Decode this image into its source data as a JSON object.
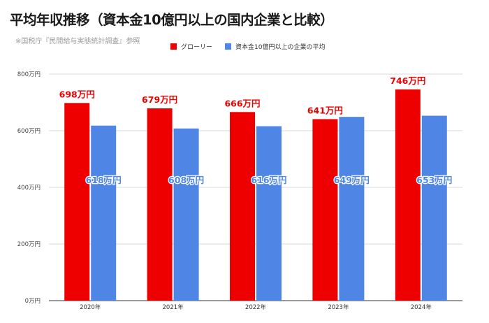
{
  "title": "平均年収推移（資本金10億円以上の国内企業と比較）",
  "subtitle": "※国税庁『民間給与実態統計調査』参照",
  "colors": {
    "series1": "#ee0000",
    "series2": "#4f86e5",
    "grid": "#d9d9d9",
    "axis": "#333333"
  },
  "chart_data": {
    "type": "bar",
    "categories": [
      "2020年",
      "2021年",
      "2022年",
      "2023年",
      "2024年"
    ],
    "series": [
      {
        "name": "グローリー",
        "values": [
          698,
          679,
          666,
          641,
          746
        ],
        "labels": [
          "698万円",
          "679万円",
          "666万円",
          "641万円",
          "746万円"
        ]
      },
      {
        "name": "資本金10億円以上の企業の平均",
        "values": [
          618,
          608,
          616,
          649,
          653
        ],
        "labels": [
          "618万円",
          "608万円",
          "616万円",
          "649万円",
          "653万円"
        ]
      }
    ],
    "yticks": [
      0,
      200,
      400,
      600,
      800
    ],
    "ytick_labels": [
      "0万円",
      "200万円",
      "400万円",
      "600万円",
      "800万円"
    ],
    "ylim": [
      0,
      800
    ],
    "grid": true,
    "legend_position": "top"
  }
}
